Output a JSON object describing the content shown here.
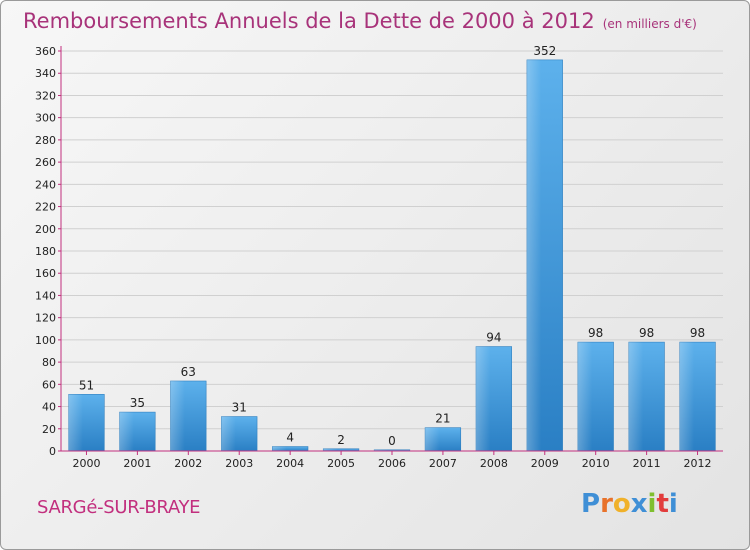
{
  "header": {
    "title": "Remboursements Annuels de la Dette de 2000 à 2012",
    "subtitle": "(en milliers d'€)"
  },
  "footer": {
    "town": "SARGé-SUR-BRAYE",
    "brand": "Proxiti",
    "brand_colors": [
      "#3f8fd6",
      "#e8722a",
      "#f0b12a",
      "#3f8fd6",
      "#7fbf2f",
      "#e23c3c",
      "#3f8fd6"
    ]
  },
  "colors": {
    "bar": "#4aa3e4",
    "title": "#a8337a",
    "axis": "#c22f7e"
  },
  "chart_data": {
    "type": "bar",
    "categories": [
      "2000",
      "2001",
      "2002",
      "2003",
      "2004",
      "2005",
      "2006",
      "2007",
      "2008",
      "2009",
      "2010",
      "2011",
      "2012"
    ],
    "values": [
      51,
      35,
      63,
      31,
      4,
      2,
      0,
      21,
      94,
      352,
      98,
      98,
      98
    ],
    "data_labels": [
      "51",
      "35",
      "63",
      "31",
      "4",
      "2",
      "0",
      "21",
      "94",
      "352",
      "98",
      "98",
      "98"
    ],
    "yticks": [
      0,
      20,
      40,
      60,
      80,
      100,
      120,
      140,
      160,
      180,
      200,
      220,
      240,
      260,
      280,
      300,
      320,
      340,
      360
    ],
    "ylim": [
      0,
      360
    ],
    "grid": true
  }
}
